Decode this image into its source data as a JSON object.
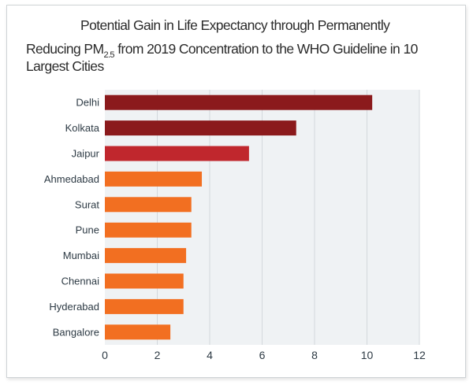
{
  "chart_data": {
    "type": "bar",
    "orientation": "horizontal",
    "title": {
      "line1": "Potential Gain in Life Expectancy through Permanently",
      "line2_pre": "Reducing PM",
      "line2_sub": "2.5",
      "line2_post": " from 2019 Concentration to the WHO Guideline in 10",
      "line3": "Largest Cities"
    },
    "xlabel": "",
    "ylabel": "",
    "categories": [
      "Delhi",
      "Kolkata",
      "Jaipur",
      "Ahmedabad",
      "Surat",
      "Pune",
      "Mumbai",
      "Chennai",
      "Hyderabad",
      "Bangalore"
    ],
    "values": [
      10.2,
      7.3,
      5.5,
      3.7,
      3.3,
      3.3,
      3.1,
      3.0,
      3.0,
      2.5
    ],
    "bar_colors": [
      "#8b1a1c",
      "#8b1a1c",
      "#c0272d",
      "#f26f21",
      "#f26f21",
      "#f26f21",
      "#f26f21",
      "#f26f21",
      "#f26f21",
      "#f26f21"
    ],
    "xlim": [
      0,
      12
    ],
    "xticks": [
      "0",
      "2",
      "4",
      "6",
      "8",
      "10",
      "12"
    ],
    "grid": true,
    "plot_background": "#eff2f4",
    "legend": "none"
  }
}
